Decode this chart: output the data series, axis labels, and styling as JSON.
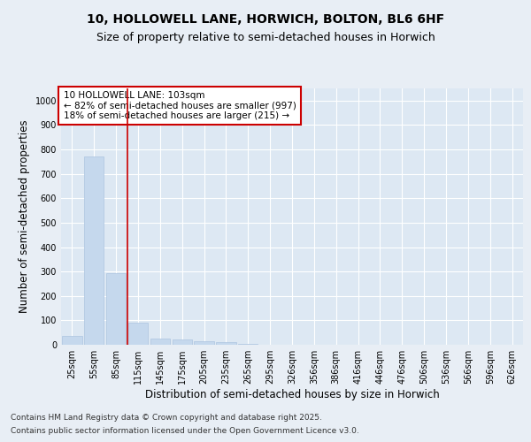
{
  "title_line1": "10, HOLLOWELL LANE, HORWICH, BOLTON, BL6 6HF",
  "title_line2": "Size of property relative to semi-detached houses in Horwich",
  "xlabel": "Distribution of semi-detached houses by size in Horwich",
  "ylabel": "Number of semi-detached properties",
  "categories": [
    "25sqm",
    "55sqm",
    "85sqm",
    "115sqm",
    "145sqm",
    "175sqm",
    "205sqm",
    "235sqm",
    "265sqm",
    "295sqm",
    "326sqm",
    "356sqm",
    "386sqm",
    "416sqm",
    "446sqm",
    "476sqm",
    "506sqm",
    "536sqm",
    "566sqm",
    "596sqm",
    "626sqm"
  ],
  "values": [
    38,
    770,
    295,
    90,
    25,
    20,
    15,
    10,
    3,
    0,
    0,
    0,
    0,
    0,
    0,
    0,
    0,
    0,
    0,
    0,
    0
  ],
  "bar_color": "#c5d8ed",
  "bar_edge_color": "#adc4e0",
  "vline_x": 2.5,
  "vline_color": "#cc0000",
  "property_size": "103sqm",
  "pct_smaller": 82,
  "count_smaller": 997,
  "pct_larger": 18,
  "count_larger": 215,
  "annotation_box_color": "#cc0000",
  "ylim": [
    0,
    1050
  ],
  "yticks": [
    0,
    100,
    200,
    300,
    400,
    500,
    600,
    700,
    800,
    900,
    1000
  ],
  "fig_bg_color": "#e8eef5",
  "plot_bg_color": "#dde8f3",
  "footer_line1": "Contains HM Land Registry data © Crown copyright and database right 2025.",
  "footer_line2": "Contains public sector information licensed under the Open Government Licence v3.0.",
  "title_fontsize": 10,
  "subtitle_fontsize": 9,
  "axis_label_fontsize": 8.5,
  "tick_fontsize": 7,
  "annotation_fontsize": 7.5,
  "footer_fontsize": 6.5
}
